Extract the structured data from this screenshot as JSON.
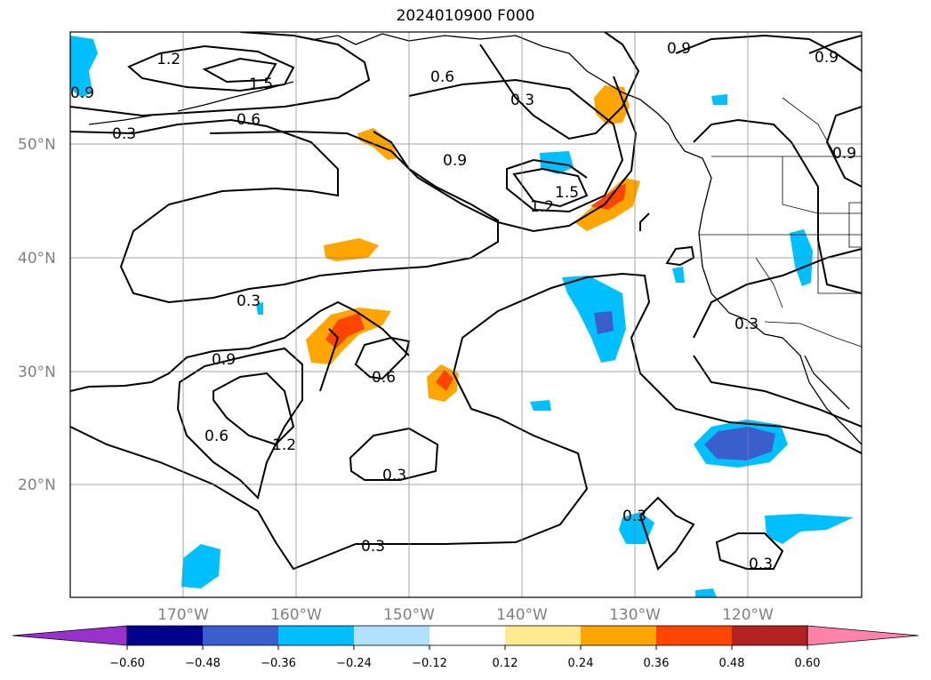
{
  "title": "2024010900 F000",
  "lat_labels": [
    "50°N",
    "40°N",
    "30°N",
    "20°N"
  ],
  "lon_labels": [
    "170°W",
    "160°W",
    "150°W",
    "140°W",
    "130°W",
    "120°W"
  ],
  "colorbar": {
    "ticks": [
      "−0.60",
      "−0.48",
      "−0.36",
      "−0.24",
      "−0.12",
      "0.12",
      "0.24",
      "0.36",
      "0.48",
      "0.60"
    ],
    "colors": [
      "#9932cc",
      "#00008b",
      "#3a5fcd",
      "#00bfff",
      "#b0e2ff",
      "#ffffff",
      "#ffea8f",
      "#ffa500",
      "#ff4500",
      "#b22222",
      "#ff82ab"
    ]
  },
  "contour_labels": [
    "1.2",
    "1.5",
    "0.9",
    "0.6",
    "0.3",
    "0.6",
    "0.3",
    "0.9",
    "1.2",
    "1.5",
    "0.9",
    "0.9",
    "0.9",
    "0.3",
    "0.9",
    "0.6",
    "0.6",
    "1.2",
    "0.3",
    "0.3",
    "0.3",
    "0.3",
    "0.3"
  ]
}
